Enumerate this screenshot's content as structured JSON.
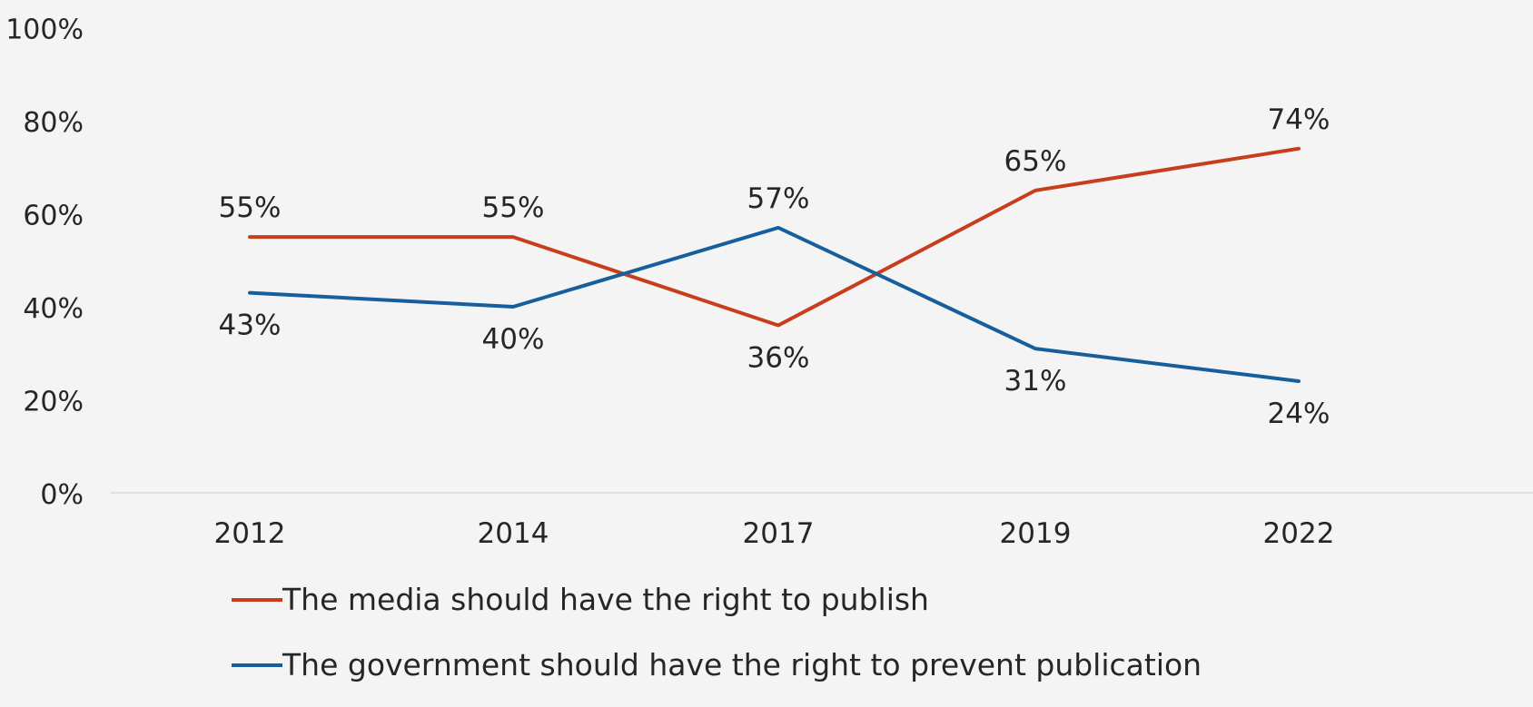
{
  "chart_data": {
    "type": "line",
    "categories": [
      "2012",
      "2014",
      "2017",
      "2019",
      "2022"
    ],
    "ylim": [
      0,
      100
    ],
    "y_ticks": [
      0,
      20,
      40,
      60,
      80,
      100
    ],
    "y_tick_labels": [
      "0%",
      "20%",
      "40%",
      "60%",
      "80%",
      "100%"
    ],
    "grid": false,
    "legend_position": "bottom",
    "series": [
      {
        "name": "The media should have the right to publish",
        "values": [
          55,
          55,
          36,
          65,
          74
        ],
        "labels": [
          "55%",
          "55%",
          "36%",
          "65%",
          "74%"
        ],
        "color": "#c73e1d"
      },
      {
        "name": "The government should have the right to prevent publication",
        "values": [
          43,
          40,
          57,
          31,
          24
        ],
        "labels": [
          "43%",
          "40%",
          "57%",
          "31%",
          "24%"
        ],
        "color": "#165e9c"
      }
    ]
  }
}
